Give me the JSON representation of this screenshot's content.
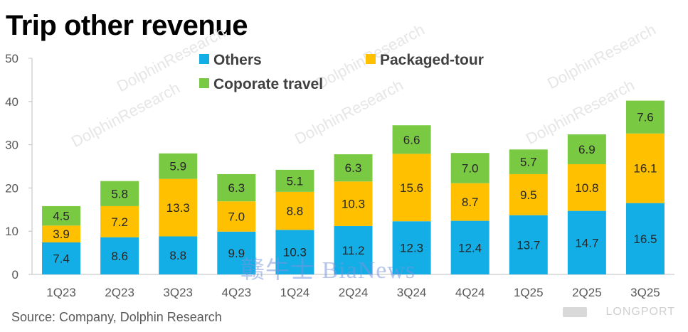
{
  "chart_data": {
    "type": "bar",
    "stacked": true,
    "title": "Trip other revenue",
    "categories": [
      "1Q23",
      "2Q23",
      "3Q23",
      "4Q23",
      "1Q24",
      "2Q24",
      "3Q24",
      "4Q24",
      "1Q25",
      "2Q25",
      "3Q25"
    ],
    "series": [
      {
        "name": "Others",
        "color": "#14aee6",
        "values": [
          7.4,
          8.6,
          8.8,
          9.9,
          10.3,
          11.2,
          12.3,
          12.4,
          13.7,
          14.7,
          16.5
        ]
      },
      {
        "name": "Packaged-tour",
        "color": "#ffc000",
        "values": [
          3.9,
          7.2,
          13.3,
          7.0,
          8.8,
          10.3,
          15.6,
          8.7,
          9.5,
          10.8,
          16.1
        ]
      },
      {
        "name": "Coporate travel",
        "color": "#7ac943",
        "values": [
          4.5,
          5.8,
          5.9,
          6.3,
          5.1,
          6.3,
          6.6,
          7.0,
          5.7,
          6.9,
          7.6
        ]
      }
    ],
    "yticks": [
      0,
      10,
      20,
      30,
      40,
      50
    ],
    "ylim": [
      0,
      50
    ],
    "grid": false,
    "legend": "top-center"
  },
  "source": "Source: Company, Dolphin Research",
  "watermark_text": "DolphinResearch",
  "news_watermark": "赣牛士 BiaNews",
  "brand_watermark": "LONGPORT"
}
